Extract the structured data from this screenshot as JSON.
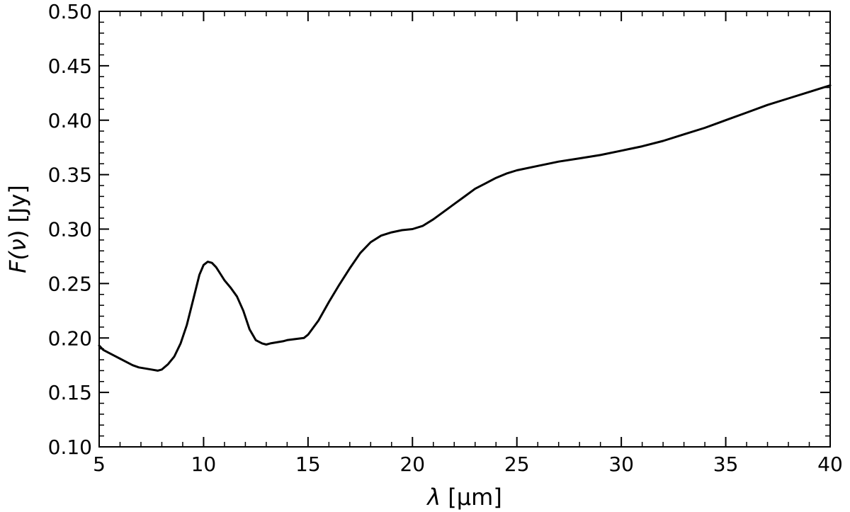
{
  "chart_data": {
    "type": "line",
    "title": "",
    "xlabel_symbol": "λ",
    "xlabel_unit": " [μm]",
    "ylabel_prefix": "F(",
    "ylabel_symbol": "ν",
    "ylabel_suffix": ") [Jy]",
    "xlim": [
      5,
      40
    ],
    "ylim": [
      0.1,
      0.5
    ],
    "xticks": [
      5,
      10,
      15,
      20,
      25,
      30,
      35,
      40
    ],
    "xtick_labels": [
      "5",
      "10",
      "15",
      "20",
      "25",
      "30",
      "35",
      "40"
    ],
    "yticks": [
      0.1,
      0.15,
      0.2,
      0.25,
      0.3,
      0.35,
      0.4,
      0.45,
      0.5
    ],
    "ytick_labels": [
      "0.10",
      "0.15",
      "0.20",
      "0.25",
      "0.30",
      "0.35",
      "0.40",
      "0.45",
      "0.50"
    ],
    "minor_x_step": 1,
    "minor_y_step": 0.01,
    "ticks_direction": "in",
    "ticks_on_all_sides": true,
    "grid": false,
    "line_color": "#000000",
    "series": [
      {
        "x": [
          5.0,
          5.2,
          5.5,
          5.8,
          6.0,
          6.3,
          6.6,
          6.9,
          7.2,
          7.5,
          7.8,
          8.0,
          8.3,
          8.6,
          8.9,
          9.2,
          9.5,
          9.8,
          10.0,
          10.2,
          10.4,
          10.6,
          10.8,
          11.0,
          11.3,
          11.6,
          11.9,
          12.2,
          12.5,
          12.8,
          13.0,
          13.2,
          13.5,
          13.8,
          14.0,
          14.4,
          14.8,
          15.0,
          15.5,
          16.0,
          16.5,
          17.0,
          17.5,
          18.0,
          18.5,
          19.0,
          19.5,
          20.0,
          20.5,
          21.0,
          21.5,
          22.0,
          22.5,
          23.0,
          23.5,
          24.0,
          24.5,
          25.0,
          26.0,
          27.0,
          28.0,
          29.0,
          30.0,
          31.0,
          32.0,
          33.0,
          34.0,
          35.0,
          36.0,
          37.0,
          38.0,
          39.0,
          40.0
        ],
        "y": [
          0.193,
          0.189,
          0.186,
          0.183,
          0.181,
          0.178,
          0.175,
          0.173,
          0.172,
          0.171,
          0.17,
          0.171,
          0.176,
          0.183,
          0.195,
          0.212,
          0.235,
          0.258,
          0.267,
          0.27,
          0.269,
          0.265,
          0.259,
          0.253,
          0.246,
          0.238,
          0.225,
          0.208,
          0.198,
          0.195,
          0.194,
          0.195,
          0.196,
          0.197,
          0.198,
          0.199,
          0.2,
          0.203,
          0.216,
          0.233,
          0.249,
          0.264,
          0.278,
          0.288,
          0.294,
          0.297,
          0.299,
          0.3,
          0.303,
          0.309,
          0.316,
          0.323,
          0.33,
          0.337,
          0.342,
          0.347,
          0.351,
          0.354,
          0.358,
          0.362,
          0.365,
          0.368,
          0.372,
          0.376,
          0.381,
          0.387,
          0.393,
          0.4,
          0.407,
          0.414,
          0.42,
          0.426,
          0.432
        ]
      }
    ]
  }
}
